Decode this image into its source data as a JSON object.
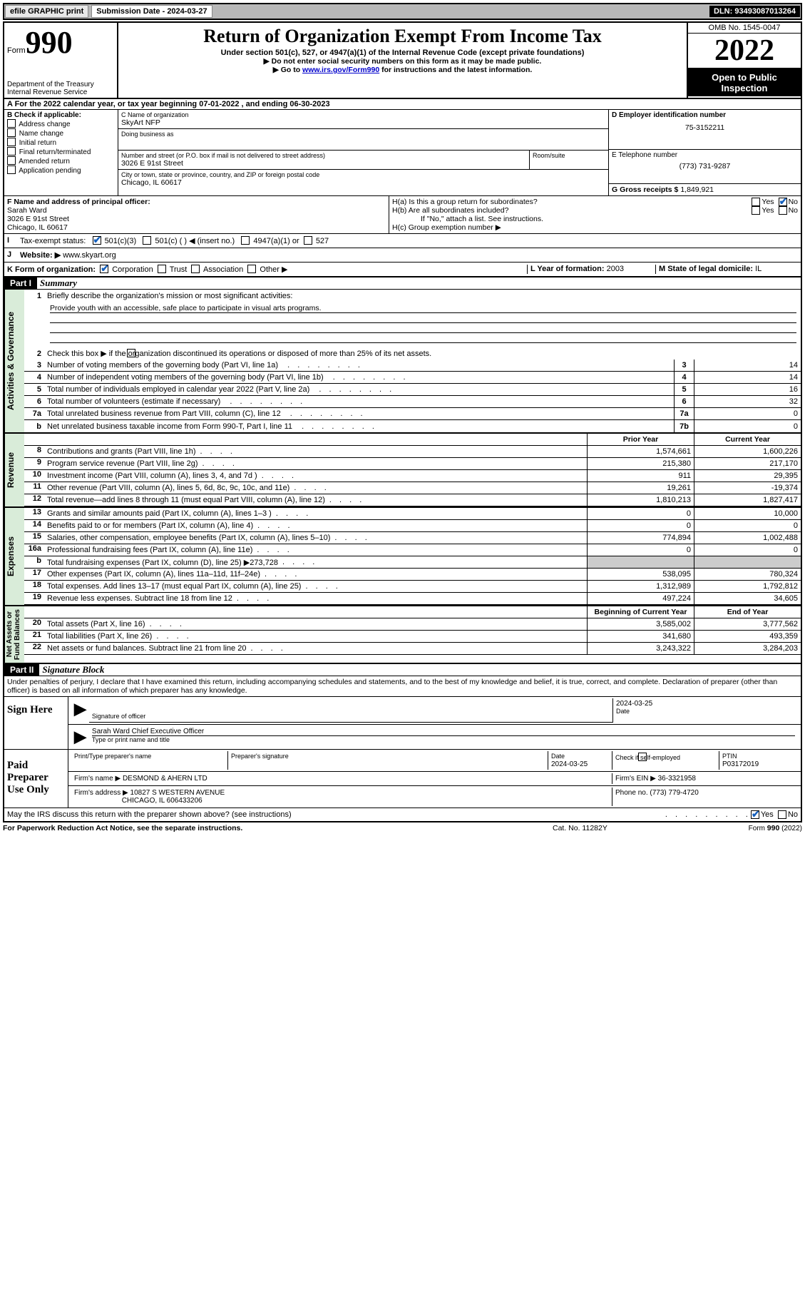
{
  "topbar": {
    "efile": "efile GRAPHIC print",
    "submission_label": "Submission Date - 2024-03-27",
    "dln_label": "DLN: 93493087013264"
  },
  "header": {
    "form_label": "Form",
    "form_number": "990",
    "dept": "Department of the Treasury\nInternal Revenue Service",
    "title": "Return of Organization Exempt From Income Tax",
    "under": "Under section 501(c), 527, or 4947(a)(1) of the Internal Revenue Code (except private foundations)",
    "note1": "▶ Do not enter social security numbers on this form as it may be made public.",
    "note2_pre": "▶ Go to ",
    "note2_link": "www.irs.gov/Form990",
    "note2_post": " for instructions and the latest information.",
    "omb": "OMB No. 1545-0047",
    "year": "2022",
    "open": "Open to Public Inspection"
  },
  "A": {
    "text_pre": "A For the 2022 calendar year, or tax year beginning ",
    "begin": "07-01-2022",
    "mid": " , and ending ",
    "end": "06-30-2023"
  },
  "B": {
    "label": "B Check if applicable:",
    "items": [
      "Address change",
      "Name change",
      "Initial return",
      "Final return/terminated",
      "Amended return",
      "Application pending"
    ]
  },
  "C": {
    "name_label": "C Name of organization",
    "name": "SkyArt NFP",
    "dba_label": "Doing business as",
    "addr_label": "Number and street (or P.O. box if mail is not delivered to street address)",
    "room_label": "Room/suite",
    "addr": "3026 E 91st Street",
    "city_label": "City or town, state or province, country, and ZIP or foreign postal code",
    "city": "Chicago, IL  60617"
  },
  "D": {
    "label": "D Employer identification number",
    "value": "75-3152211"
  },
  "E": {
    "label": "E Telephone number",
    "value": "(773) 731-9287"
  },
  "G": {
    "label": "G Gross receipts $",
    "value": "1,849,921"
  },
  "F": {
    "label": "F Name and address of principal officer:",
    "name": "Sarah Ward",
    "addr1": "3026 E 91st Street",
    "addr2": "Chicago, IL  60617"
  },
  "H": {
    "a": "H(a)  Is this a group return for subordinates?",
    "b": "H(b)  Are all subordinates included?",
    "b_note": "If \"No,\" attach a list. See instructions.",
    "c": "H(c)  Group exemption number ▶",
    "yes": "Yes",
    "no": "No"
  },
  "I": {
    "label": "Tax-exempt status:",
    "opt1": "501(c)(3)",
    "opt2": "501(c) (   ) ◀ (insert no.)",
    "opt3": "4947(a)(1) or",
    "opt4": "527"
  },
  "J": {
    "label": "Website: ▶",
    "value": "www.skyart.org"
  },
  "K": {
    "label": "K Form of organization:",
    "opts": [
      "Corporation",
      "Trust",
      "Association",
      "Other ▶"
    ]
  },
  "L": {
    "label": "L Year of formation:",
    "value": "2003"
  },
  "M": {
    "label": "M State of legal domicile:",
    "value": "IL"
  },
  "partI": {
    "hdr": "Part I",
    "title": "Summary",
    "l1": "Briefly describe the organization's mission or most significant activities:",
    "mission": "Provide youth with an accessible, safe place to participate in visual arts programs.",
    "l2": "Check this box ▶          if the organization discontinued its operations or disposed of more than 25% of its net assets.",
    "gov_lines": [
      {
        "n": "3",
        "t": "Number of voting members of the governing body (Part VI, line 1a)",
        "box": "3",
        "v": "14"
      },
      {
        "n": "4",
        "t": "Number of independent voting members of the governing body (Part VI, line 1b)",
        "box": "4",
        "v": "14"
      },
      {
        "n": "5",
        "t": "Total number of individuals employed in calendar year 2022 (Part V, line 2a)",
        "box": "5",
        "v": "16"
      },
      {
        "n": "6",
        "t": "Total number of volunteers (estimate if necessary)",
        "box": "6",
        "v": "32"
      },
      {
        "n": "7a",
        "t": "Total unrelated business revenue from Part VIII, column (C), line 12",
        "box": "7a",
        "v": "0"
      },
      {
        "n": "b",
        "t": "Net unrelated business taxable income from Form 990-T, Part I, line 11",
        "box": "7b",
        "v": "0"
      }
    ],
    "col_hdr1": "Prior Year",
    "col_hdr2": "Current Year",
    "rev_lines": [
      {
        "n": "8",
        "t": "Contributions and grants (Part VIII, line 1h)",
        "v1": "1,574,661",
        "v2": "1,600,226"
      },
      {
        "n": "9",
        "t": "Program service revenue (Part VIII, line 2g)",
        "v1": "215,380",
        "v2": "217,170"
      },
      {
        "n": "10",
        "t": "Investment income (Part VIII, column (A), lines 3, 4, and 7d )",
        "v1": "911",
        "v2": "29,395"
      },
      {
        "n": "11",
        "t": "Other revenue (Part VIII, column (A), lines 5, 6d, 8c, 9c, 10c, and 11e)",
        "v1": "19,261",
        "v2": "-19,374"
      },
      {
        "n": "12",
        "t": "Total revenue—add lines 8 through 11 (must equal Part VIII, column (A), line 12)",
        "v1": "1,810,213",
        "v2": "1,827,417"
      }
    ],
    "exp_lines": [
      {
        "n": "13",
        "t": "Grants and similar amounts paid (Part IX, column (A), lines 1–3 )",
        "v1": "0",
        "v2": "10,000"
      },
      {
        "n": "14",
        "t": "Benefits paid to or for members (Part IX, column (A), line 4)",
        "v1": "0",
        "v2": "0"
      },
      {
        "n": "15",
        "t": "Salaries, other compensation, employee benefits (Part IX, column (A), lines 5–10)",
        "v1": "774,894",
        "v2": "1,002,488"
      },
      {
        "n": "16a",
        "t": "Professional fundraising fees (Part IX, column (A), line 11e)",
        "v1": "0",
        "v2": "0"
      },
      {
        "n": "b",
        "t": "Total fundraising expenses (Part IX, column (D), line 25) ▶273,728",
        "v1": "",
        "v2": "",
        "shade": true
      },
      {
        "n": "17",
        "t": "Other expenses (Part IX, column (A), lines 11a–11d, 11f–24e)",
        "v1": "538,095",
        "v2": "780,324"
      },
      {
        "n": "18",
        "t": "Total expenses. Add lines 13–17 (must equal Part IX, column (A), line 25)",
        "v1": "1,312,989",
        "v2": "1,792,812"
      },
      {
        "n": "19",
        "t": "Revenue less expenses. Subtract line 18 from line 12",
        "v1": "497,224",
        "v2": "34,605"
      }
    ],
    "na_hdr1": "Beginning of Current Year",
    "na_hdr2": "End of Year",
    "na_lines": [
      {
        "n": "20",
        "t": "Total assets (Part X, line 16)",
        "v1": "3,585,002",
        "v2": "3,777,562"
      },
      {
        "n": "21",
        "t": "Total liabilities (Part X, line 26)",
        "v1": "341,680",
        "v2": "493,359"
      },
      {
        "n": "22",
        "t": "Net assets or fund balances. Subtract line 21 from line 20",
        "v1": "3,243,322",
        "v2": "3,284,203"
      }
    ],
    "vtabs": {
      "gov": "Activities & Governance",
      "rev": "Revenue",
      "exp": "Expenses",
      "na": "Net Assets or\nFund Balances"
    }
  },
  "partII": {
    "hdr": "Part II",
    "title": "Signature Block",
    "penalties": "Under penalties of perjury, I declare that I have examined this return, including accompanying schedules and statements, and to the best of my knowledge and belief, it is true, correct, and complete. Declaration of preparer (other than officer) is based on all information of which preparer has any knowledge.",
    "sign_here": "Sign Here",
    "sig_officer": "Signature of officer",
    "sig_date": "2024-03-25",
    "date_lbl": "Date",
    "officer_name": "Sarah Ward  Chief Executive Officer",
    "type_name": "Type or print name and title",
    "paid": "Paid Preparer Use Only",
    "prep_name_lbl": "Print/Type preparer's name",
    "prep_sig_lbl": "Preparer's signature",
    "prep_date_lbl": "Date",
    "prep_date": "2024-03-25",
    "check_if": "Check          if self-employed",
    "ptin_lbl": "PTIN",
    "ptin": "P03172019",
    "firm_name_lbl": "Firm's name      ▶",
    "firm_name": "DESMOND & AHERN LTD",
    "firm_ein_lbl": "Firm's EIN ▶",
    "firm_ein": "36-3321958",
    "firm_addr_lbl": "Firm's address ▶",
    "firm_addr1": "10827 S WESTERN AVENUE",
    "firm_addr2": "CHICAGO, IL  606433206",
    "phone_lbl": "Phone no.",
    "phone": "(773) 779-4720",
    "may_irs": "May the IRS discuss this return with the preparer shown above? (see instructions)",
    "yes": "Yes",
    "no": "No"
  },
  "footer": {
    "left": "For Paperwork Reduction Act Notice, see the separate instructions.",
    "mid": "Cat. No. 11282Y",
    "right": "Form 990 (2022)"
  }
}
